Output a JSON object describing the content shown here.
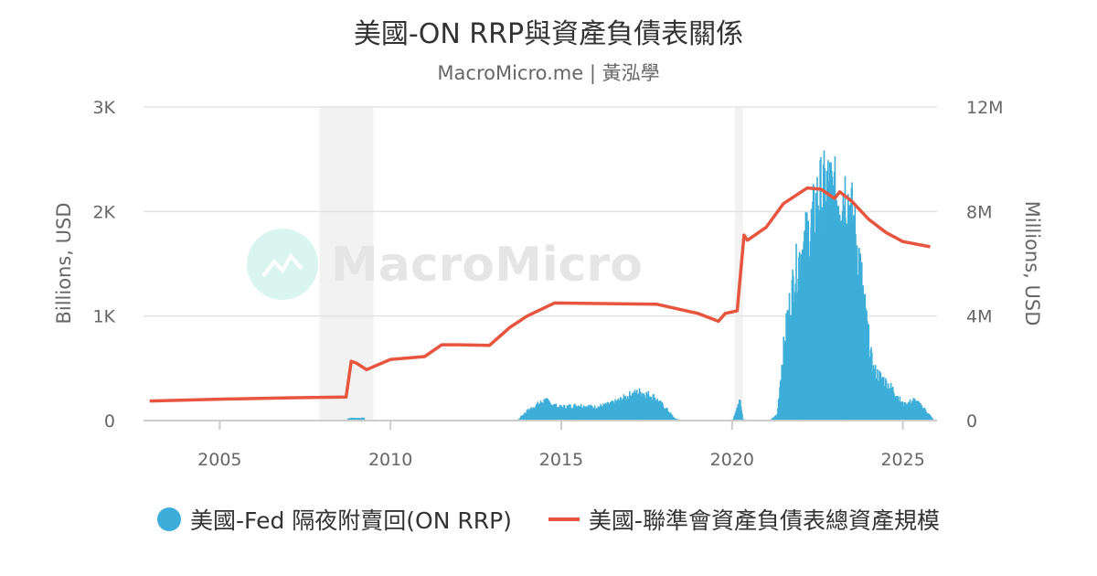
{
  "chart_data": {
    "type": "bar+line",
    "title": "美國-ON RRP與資產負債表關係",
    "subtitle": "MacroMicro.me | 黃泓學",
    "watermark": "MacroMicro",
    "left_axis": {
      "label": "Billions, USD",
      "range": [
        0,
        3000
      ],
      "ticks": [
        {
          "v": 0,
          "t": "0"
        },
        {
          "v": 1000,
          "t": "1K"
        },
        {
          "v": 2000,
          "t": "2K"
        },
        {
          "v": 3000,
          "t": "3K"
        }
      ]
    },
    "right_axis": {
      "label": "Millions, USD",
      "range": [
        0,
        12000000
      ],
      "ticks": [
        {
          "v": 0,
          "t": "0"
        },
        {
          "v": 4000000,
          "t": "4M"
        },
        {
          "v": 8000000,
          "t": "8M"
        },
        {
          "v": 12000000,
          "t": "12M"
        }
      ]
    },
    "x_axis": {
      "range": [
        2002.77,
        2026.0
      ],
      "ticks": [
        {
          "v": 2005,
          "t": "2005"
        },
        {
          "v": 2010,
          "t": "2010"
        },
        {
          "v": 2015,
          "t": "2015"
        },
        {
          "v": 2020,
          "t": "2020"
        },
        {
          "v": 2025,
          "t": "2025"
        }
      ]
    },
    "grid": true,
    "legend_position": "bottom",
    "recession_shading": [
      [
        2007.92,
        2009.5
      ],
      [
        2020.08,
        2020.32
      ]
    ],
    "series": [
      {
        "name": "美國-Fed 隔夜附賣回(ON RRP)",
        "type": "bar",
        "axis": "left",
        "color": "#3caed9",
        "points": [
          [
            2008.7,
            0
          ],
          [
            2008.75,
            25
          ],
          [
            2009.2,
            25
          ],
          [
            2009.25,
            0
          ],
          [
            2013.7,
            0
          ],
          [
            2013.8,
            40
          ],
          [
            2014.0,
            100
          ],
          [
            2014.3,
            160
          ],
          [
            2014.5,
            200
          ],
          [
            2014.9,
            130
          ],
          [
            2015.5,
            150
          ],
          [
            2016.0,
            130
          ],
          [
            2016.5,
            170
          ],
          [
            2017.0,
            250
          ],
          [
            2017.3,
            280
          ],
          [
            2017.7,
            230
          ],
          [
            2018.1,
            100
          ],
          [
            2018.3,
            20
          ],
          [
            2018.5,
            5
          ],
          [
            2020.0,
            5
          ],
          [
            2020.2,
            220
          ],
          [
            2020.3,
            10
          ],
          [
            2021.1,
            5
          ],
          [
            2021.3,
            60
          ],
          [
            2021.45,
            600
          ],
          [
            2021.6,
            1000
          ],
          [
            2021.8,
            1400
          ],
          [
            2022.0,
            1650
          ],
          [
            2022.3,
            1900
          ],
          [
            2022.5,
            2200
          ],
          [
            2022.8,
            2300
          ],
          [
            2023.0,
            2200
          ],
          [
            2023.3,
            2250
          ],
          [
            2023.5,
            2000
          ],
          [
            2023.7,
            1600
          ],
          [
            2023.9,
            1000
          ],
          [
            2024.1,
            500
          ],
          [
            2024.4,
            400
          ],
          [
            2024.7,
            300
          ],
          [
            2025.0,
            150
          ],
          [
            2025.3,
            200
          ],
          [
            2025.6,
            120
          ],
          [
            2025.85,
            20
          ]
        ]
      },
      {
        "name": "美國-聯準會資產負債表總資產規模",
        "type": "line",
        "axis": "right",
        "color": "#e8553e",
        "points": [
          [
            2002.95,
            750000
          ],
          [
            2005,
            820000
          ],
          [
            2007,
            870000
          ],
          [
            2008.7,
            900000
          ],
          [
            2008.85,
            2270000
          ],
          [
            2009.0,
            2200000
          ],
          [
            2009.3,
            1950000
          ],
          [
            2010.0,
            2340000
          ],
          [
            2011.0,
            2450000
          ],
          [
            2011.5,
            2900000
          ],
          [
            2012.0,
            2900000
          ],
          [
            2012.9,
            2880000
          ],
          [
            2013.5,
            3570000
          ],
          [
            2014.0,
            4000000
          ],
          [
            2014.8,
            4500000
          ],
          [
            2017.8,
            4450000
          ],
          [
            2019.0,
            4100000
          ],
          [
            2019.6,
            3800000
          ],
          [
            2019.8,
            4100000
          ],
          [
            2020.15,
            4200000
          ],
          [
            2020.35,
            7100000
          ],
          [
            2020.45,
            6900000
          ],
          [
            2021.0,
            7400000
          ],
          [
            2021.5,
            8300000
          ],
          [
            2022.2,
            8900000
          ],
          [
            2022.6,
            8850000
          ],
          [
            2023.0,
            8500000
          ],
          [
            2023.15,
            8750000
          ],
          [
            2023.5,
            8400000
          ],
          [
            2024.0,
            7700000
          ],
          [
            2024.5,
            7200000
          ],
          [
            2025.0,
            6850000
          ],
          [
            2025.8,
            6650000
          ]
        ]
      }
    ]
  }
}
